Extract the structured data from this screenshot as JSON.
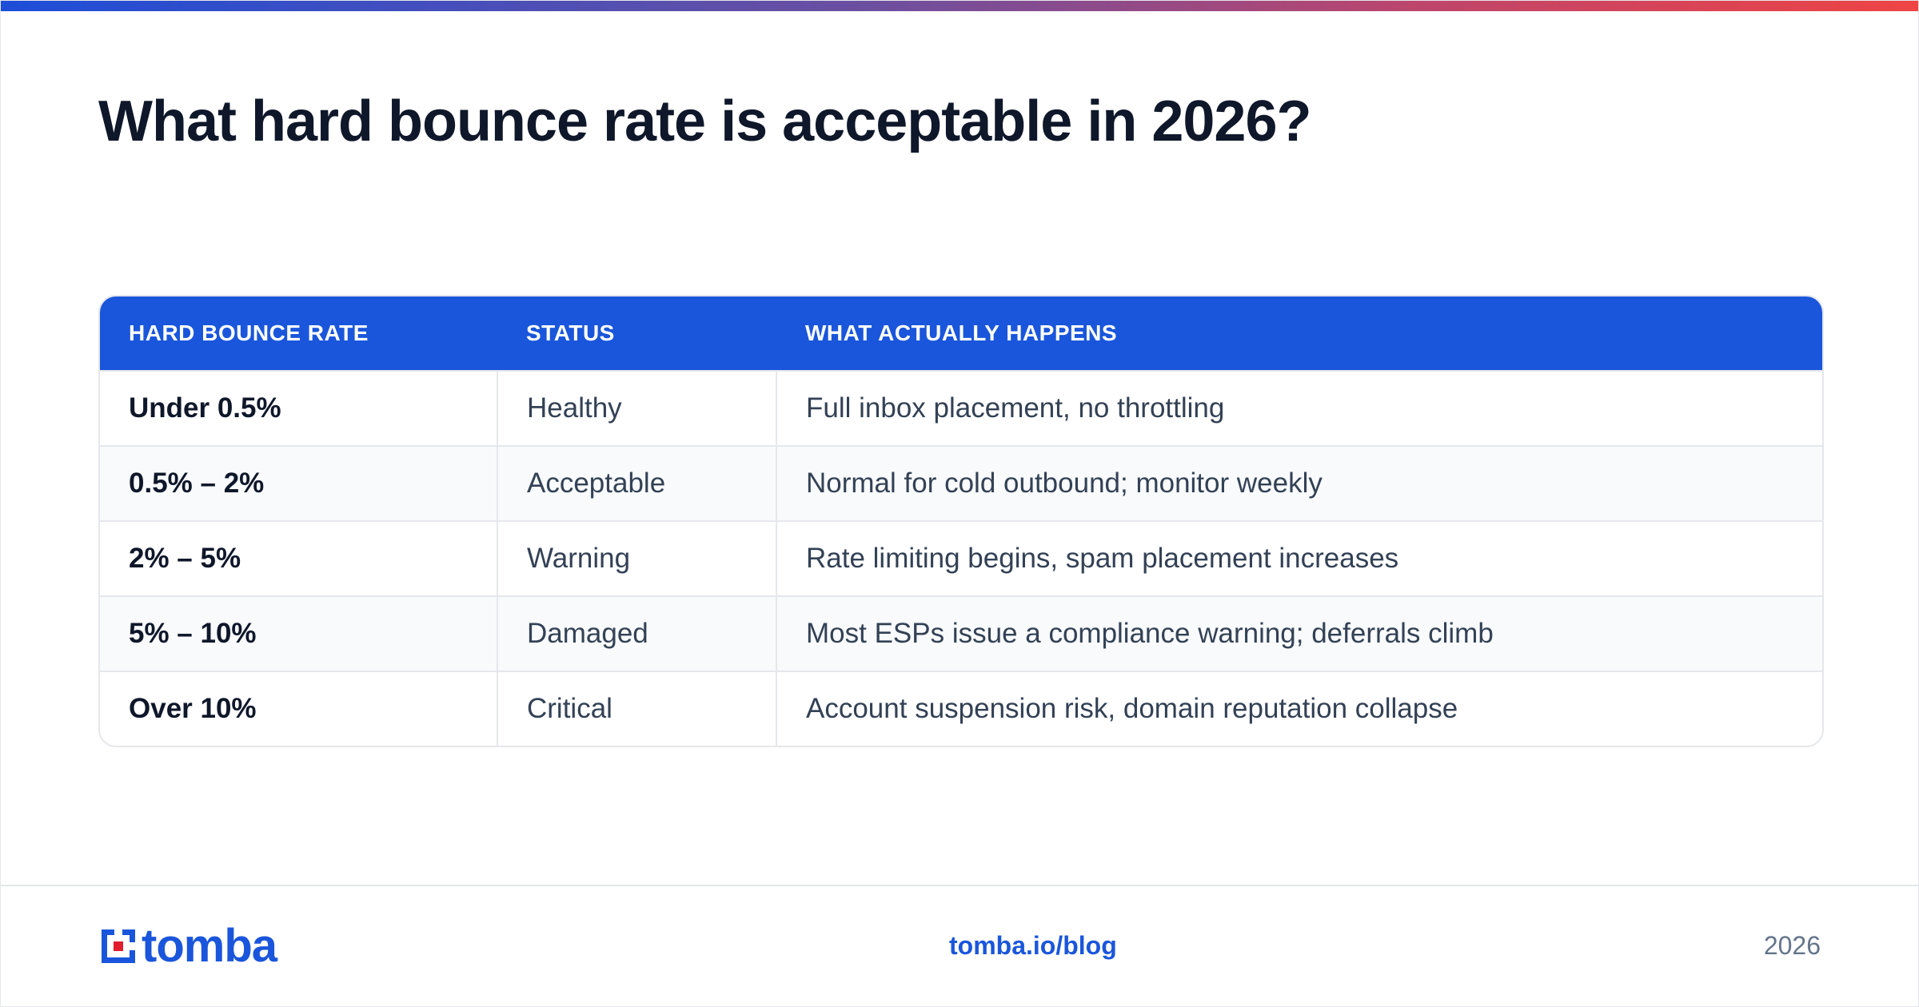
{
  "page": {
    "title": "What hard bounce rate is acceptable in 2026?"
  },
  "table": {
    "headers": [
      "HARD BOUNCE RATE",
      "STATUS",
      "WHAT ACTUALLY HAPPENS"
    ],
    "rows": [
      {
        "rate": "Under 0.5%",
        "status": "Healthy",
        "effect": "Full inbox placement, no throttling"
      },
      {
        "rate": "0.5% – 2%",
        "status": "Acceptable",
        "effect": "Normal for cold outbound; monitor weekly"
      },
      {
        "rate": "2% – 5%",
        "status": "Warning",
        "effect": "Rate limiting begins, spam placement increases"
      },
      {
        "rate": "5% – 10%",
        "status": "Damaged",
        "effect": "Most ESPs issue a compliance warning; deferrals climb"
      },
      {
        "rate": "Over 10%",
        "status": "Critical",
        "effect": "Account suspension risk, domain reputation collapse"
      }
    ]
  },
  "footer": {
    "logo_text": "tomba",
    "link": "tomba.io/blog",
    "year": "2026"
  },
  "colors": {
    "accent": "#1a56db",
    "logo_red": "#e11d2e",
    "title": "#0f172a",
    "gradient_start": "#1d4ed8",
    "gradient_end": "#ef4444"
  }
}
